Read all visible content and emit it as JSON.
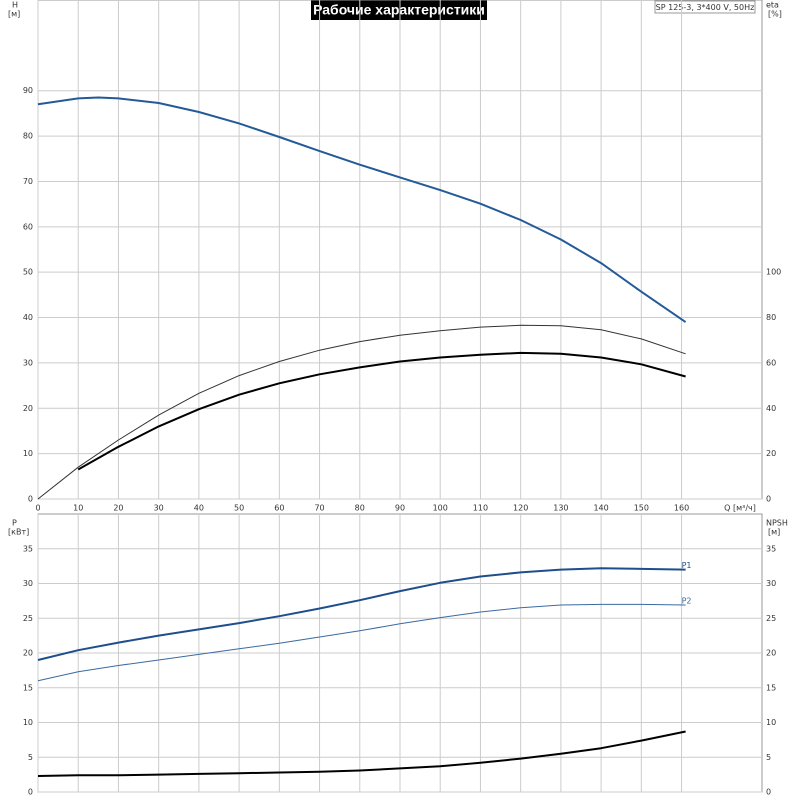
{
  "title": "Рабочие характеристики",
  "box_label": "SP 125-3, 3*400 V, 50Hz",
  "chart_data": [
    {
      "type": "line",
      "y_label": "H",
      "y_unit": "[м]",
      "y2_label": "eta",
      "y2_unit": "[%]",
      "x_label": "Q [м³/ч]",
      "xlim": [
        0,
        180
      ],
      "xticks": [
        0,
        10,
        20,
        30,
        40,
        50,
        60,
        70,
        80,
        90,
        100,
        110,
        120,
        130,
        140,
        150,
        160
      ],
      "ylim": [
        0,
        110
      ],
      "yticks": [
        0,
        10,
        20,
        30,
        40,
        50,
        60,
        70,
        80,
        90
      ],
      "y2lim": [
        0,
        220
      ],
      "y2ticks": [
        0,
        20,
        40,
        60,
        80,
        100
      ],
      "grid": true,
      "series": [
        {
          "color": "#245a98",
          "width": 2,
          "x": [
            0,
            10,
            15,
            20,
            30,
            40,
            50,
            60,
            70,
            80,
            90,
            100,
            110,
            120,
            130,
            140,
            150,
            161
          ],
          "values": [
            87,
            88.3,
            88.5,
            88.3,
            87.3,
            85.3,
            82.8,
            79.8,
            76.7,
            73.7,
            70.9,
            68.1,
            65.1,
            61.5,
            57.2,
            52,
            45.7,
            39
          ]
        },
        {
          "color": "#333333",
          "width": 1,
          "axis": "y2",
          "x": [
            0,
            10,
            20,
            30,
            40,
            50,
            60,
            70,
            80,
            90,
            100,
            110,
            120,
            130,
            140,
            150,
            161
          ],
          "values": [
            0,
            14,
            26,
            37,
            46.6,
            54.4,
            60.6,
            65.6,
            69.4,
            72.2,
            74.2,
            75.8,
            76.6,
            76.4,
            74.6,
            70.6,
            64
          ]
        },
        {
          "color": "#000000",
          "width": 2,
          "axis": "y2",
          "x": [
            10,
            20,
            30,
            40,
            50,
            60,
            70,
            80,
            90,
            100,
            110,
            120,
            130,
            140,
            150,
            161
          ],
          "values": [
            13,
            23,
            32,
            39.6,
            46,
            51,
            55,
            58,
            60.6,
            62.4,
            63.6,
            64.4,
            64,
            62.4,
            59.4,
            54
          ]
        }
      ]
    },
    {
      "type": "line",
      "y_label": "P",
      "y_unit": "[кВт]",
      "y2_label": "NPSH",
      "y2_unit": "[м]",
      "xlim": [
        0,
        180
      ],
      "ylim": [
        0,
        40
      ],
      "yticks": [
        0,
        5,
        10,
        15,
        20,
        25,
        30,
        35
      ],
      "y2lim": [
        0,
        40
      ],
      "y2ticks": [
        0,
        5,
        10,
        15,
        20,
        25,
        30,
        35
      ],
      "grid": true,
      "series": [
        {
          "name": "P1",
          "color": "#1f4e8c",
          "width": 2,
          "x": [
            0,
            10,
            20,
            30,
            40,
            50,
            60,
            70,
            80,
            90,
            100,
            110,
            120,
            130,
            140,
            150,
            161
          ],
          "values": [
            19,
            20.4,
            21.5,
            22.5,
            23.4,
            24.3,
            25.3,
            26.4,
            27.6,
            28.9,
            30.1,
            31,
            31.6,
            32,
            32.2,
            32.1,
            32
          ]
        },
        {
          "name": "P2",
          "color": "#3a6aa0",
          "width": 1,
          "x": [
            0,
            10,
            20,
            30,
            40,
            50,
            60,
            70,
            80,
            90,
            100,
            110,
            120,
            130,
            140,
            150,
            161
          ],
          "values": [
            16,
            17.3,
            18.2,
            19,
            19.8,
            20.6,
            21.4,
            22.3,
            23.2,
            24.2,
            25.1,
            25.9,
            26.5,
            26.9,
            27,
            27,
            26.9
          ]
        },
        {
          "color": "#000000",
          "width": 2,
          "axis": "y2",
          "x": [
            0,
            10,
            20,
            30,
            40,
            50,
            60,
            70,
            80,
            90,
            100,
            110,
            120,
            130,
            140,
            150,
            161
          ],
          "values": [
            2.3,
            2.4,
            2.4,
            2.5,
            2.6,
            2.7,
            2.8,
            2.9,
            3.1,
            3.4,
            3.7,
            4.2,
            4.8,
            5.5,
            6.3,
            7.4,
            8.7
          ]
        }
      ]
    }
  ]
}
